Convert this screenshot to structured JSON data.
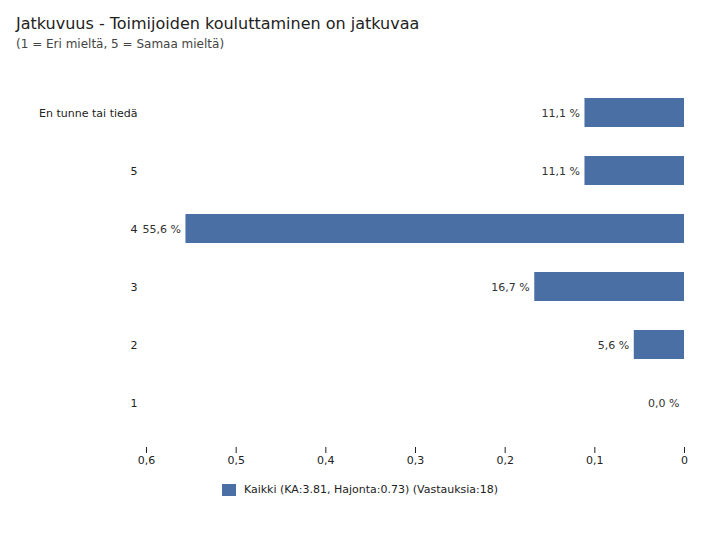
{
  "chart_data": {
    "type": "bar",
    "orientation": "horizontal",
    "title": "Jatkuvuus - Toimijoiden kouluttaminen on jatkuvaa",
    "subtitle": "(1 = Eri mieltä, 5 = Samaa mieltä)",
    "categories": [
      "En tunne tai tiedä",
      "5",
      "4",
      "3",
      "2",
      "1"
    ],
    "series": [
      {
        "name": "Kaikki (KA:3.81, Hajonta:0.73) (Vastauksia:18)",
        "color": "#4a6fa5",
        "values": [
          0.111,
          0.111,
          0.556,
          0.167,
          0.056,
          0.0
        ],
        "value_labels": [
          "11,1 %",
          "11,1 %",
          "55,6 %",
          "16,7 %",
          "5,6 %",
          "0,0 %"
        ]
      }
    ],
    "xlim": [
      0.6,
      0.0
    ],
    "xticks": [
      {
        "value": 0.6,
        "label": "0,6"
      },
      {
        "value": 0.5,
        "label": "0,5"
      },
      {
        "value": 0.4,
        "label": "0,4"
      },
      {
        "value": 0.3,
        "label": "0,3"
      },
      {
        "value": 0.2,
        "label": "0,2"
      },
      {
        "value": 0.1,
        "label": "0,1"
      },
      0
    ],
    "data_labels": true,
    "grid": false,
    "legend": "bottom"
  }
}
